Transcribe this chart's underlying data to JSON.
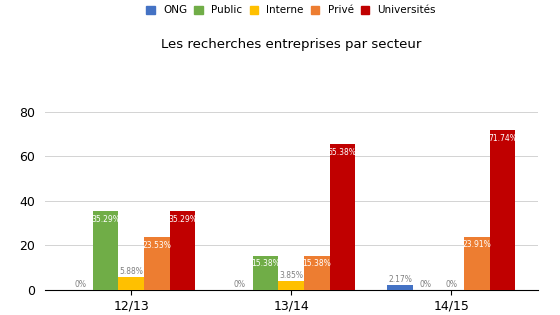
{
  "title": "Les recherches entreprises par secteur",
  "categories": [
    "12/13",
    "13/14",
    "14/15"
  ],
  "series": {
    "ONG": [
      0.0,
      0.0,
      2.17
    ],
    "Public": [
      35.29,
      15.38,
      0.0
    ],
    "Interne": [
      5.88,
      3.85,
      0.0
    ],
    "Privé": [
      23.53,
      15.38,
      23.91
    ],
    "Universités": [
      35.29,
      65.38,
      71.74
    ]
  },
  "colors": {
    "ONG": "#4472C4",
    "Public": "#70AD47",
    "Interne": "#FFC000",
    "Privé": "#ED7D31",
    "Universités": "#C00000"
  },
  "labels": {
    "ONG": [
      "0%",
      "0%",
      "2.17%"
    ],
    "Public": [
      "35.29%",
      "15.38%",
      "0%"
    ],
    "Interne": [
      "5.88%",
      "3.85%",
      "0%"
    ],
    "Privé": [
      "23.53%",
      "15.38%",
      "23.91%"
    ],
    "Universités": [
      "35.29%",
      "65.38%",
      "71.74%"
    ]
  },
  "ylim": [
    0,
    85
  ],
  "yticks": [
    0,
    20,
    40,
    60,
    80
  ],
  "background_color": "#ffffff",
  "legend_order": [
    "ONG",
    "Public",
    "Interne",
    "Privé",
    "Universités"
  ],
  "label_threshold": 10.0
}
